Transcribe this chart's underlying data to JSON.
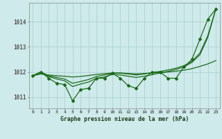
{
  "background_color": "#ceeaea",
  "grid_color": "#aacccc",
  "line_color": "#1a6b1a",
  "xlabel": "Graphe pression niveau de la mer (hPa)",
  "xlim": [
    -0.5,
    23.5
  ],
  "ylim": [
    1010.55,
    1014.75
  ],
  "yticks": [
    1011,
    1012,
    1013,
    1014
  ],
  "xticks": [
    0,
    1,
    2,
    3,
    4,
    5,
    6,
    7,
    8,
    9,
    10,
    11,
    12,
    13,
    14,
    15,
    16,
    17,
    18,
    19,
    20,
    21,
    22,
    23
  ],
  "series_detail": [
    1011.85,
    1012.0,
    1011.75,
    1011.55,
    1011.5,
    1010.85,
    1011.3,
    1011.35,
    1011.75,
    1011.75,
    1011.95,
    1011.75,
    1011.45,
    1011.35,
    1011.75,
    1012.0,
    1012.0,
    1011.75,
    1011.75,
    1012.2,
    1012.5,
    1013.3,
    1014.1,
    1014.5
  ],
  "series_trend1": [
    1011.85,
    1012.0,
    1011.85,
    1011.78,
    1011.72,
    1011.55,
    1011.62,
    1011.7,
    1011.82,
    1011.88,
    1011.95,
    1011.95,
    1011.92,
    1011.88,
    1011.92,
    1011.97,
    1012.02,
    1012.08,
    1012.15,
    1012.25,
    1012.42,
    1012.75,
    1013.45,
    1014.5
  ],
  "series_trend2": [
    1011.85,
    1011.95,
    1011.82,
    1011.72,
    1011.65,
    1011.42,
    1011.52,
    1011.6,
    1011.75,
    1011.8,
    1011.9,
    1011.88,
    1011.83,
    1011.78,
    1011.83,
    1011.89,
    1011.96,
    1012.02,
    1012.1,
    1012.2,
    1012.38,
    1012.68,
    1013.38,
    1014.5
  ],
  "series_flat": [
    1011.85,
    1011.92,
    1011.88,
    1011.85,
    1011.83,
    1011.8,
    1011.82,
    1011.86,
    1011.9,
    1011.93,
    1011.96,
    1011.96,
    1011.94,
    1011.92,
    1011.94,
    1011.96,
    1011.98,
    1012.0,
    1012.03,
    1012.07,
    1012.13,
    1012.22,
    1012.32,
    1012.45
  ]
}
